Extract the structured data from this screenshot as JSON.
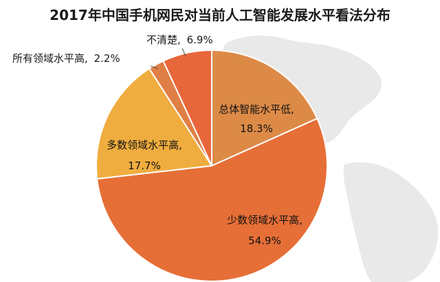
{
  "chart_data": {
    "type": "pie",
    "title": "2017年中国手机网民对当前人工智能发展水平看法分布",
    "slices": [
      {
        "label": "总体智能水平低,",
        "pct_text": "18.3%",
        "value": 18.3,
        "color": "#dd8a47"
      },
      {
        "label": "少数领域水平高,",
        "pct_text": "54.9%",
        "value": 54.9,
        "color": "#e66f37"
      },
      {
        "label": "多数领域水平高,",
        "pct_text": "17.7%",
        "value": 17.7,
        "color": "#f0ad3f"
      },
      {
        "label": "所有领域水平高,",
        "pct_text": "2.2%",
        "value": 2.2,
        "color": "#e07f45"
      },
      {
        "label": "不清楚,",
        "pct_text": "6.9%",
        "value": 6.9,
        "color": "#e8673a"
      }
    ]
  }
}
